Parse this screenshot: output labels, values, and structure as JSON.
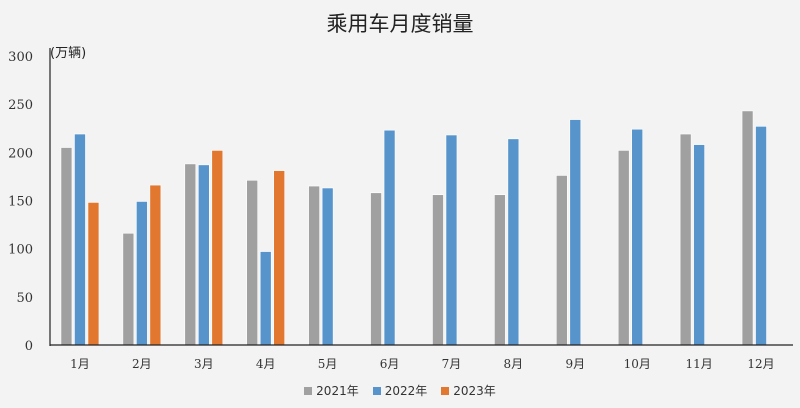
{
  "chart_data": {
    "type": "bar",
    "title": "乘用车月度销量",
    "ylabel": "(万辆)",
    "xlabel": "",
    "ylim": [
      0,
      300
    ],
    "yticks": [
      0,
      50,
      100,
      150,
      200,
      250,
      300
    ],
    "grid": false,
    "legend_position": "bottom",
    "categories": [
      "1月",
      "2月",
      "3月",
      "4月",
      "5月",
      "6月",
      "7月",
      "8月",
      "9月",
      "10月",
      "11月",
      "12月"
    ],
    "series": [
      {
        "name": "2021年",
        "color": "#a0a0a0",
        "values": [
          205,
          116,
          188,
          171,
          165,
          158,
          156,
          156,
          176,
          202,
          219,
          243
        ]
      },
      {
        "name": "2022年",
        "color": "#5694cb",
        "values": [
          219,
          149,
          187,
          97,
          163,
          223,
          218,
          214,
          234,
          224,
          208,
          227
        ]
      },
      {
        "name": "2023年",
        "color": "#e2772f",
        "values": [
          148,
          166,
          202,
          181,
          null,
          null,
          null,
          null,
          null,
          null,
          null,
          null
        ]
      }
    ]
  }
}
